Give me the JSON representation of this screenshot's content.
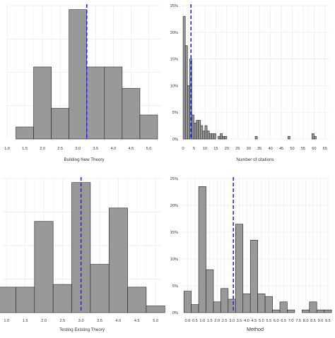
{
  "colors": {
    "bar_fill": "#999999",
    "bar_stroke": "#222222",
    "grid": "#ebebeb",
    "mean_line": "#2b2bd6"
  },
  "chart_data": [
    {
      "type": "bar",
      "id": "building",
      "xlabel": "Building New Theory",
      "ylabel": "",
      "x_ticks": [
        1.0,
        1.5,
        2.0,
        2.5,
        3.0,
        3.5,
        4.0,
        4.5,
        5.0
      ],
      "x_tick_labels": [
        "1.0",
        "1.5",
        "2.0",
        "2.5",
        "3.0",
        "3.5",
        "4.0",
        "4.5",
        "5.0"
      ],
      "xlim": [
        1.0,
        5.35
      ],
      "ylim": [
        0,
        1.0
      ],
      "y_ticks": [],
      "y_tick_labels": [],
      "grid": true,
      "mean": 3.25,
      "bars": [
        {
          "x0": 1.25,
          "x1": 1.75,
          "v": 0.09
        },
        {
          "x0": 1.75,
          "x1": 2.25,
          "v": 0.54
        },
        {
          "x0": 2.25,
          "x1": 2.75,
          "v": 0.23
        },
        {
          "x0": 2.75,
          "x1": 3.25,
          "v": 0.97
        },
        {
          "x0": 3.25,
          "x1": 3.75,
          "v": 0.54
        },
        {
          "x0": 3.75,
          "x1": 4.25,
          "v": 0.54
        },
        {
          "x0": 4.25,
          "x1": 4.75,
          "v": 0.38
        },
        {
          "x0": 4.75,
          "x1": 5.25,
          "v": 0.18
        }
      ]
    },
    {
      "type": "bar",
      "id": "citations",
      "xlabel": "Number of citations",
      "ylabel": "",
      "x_ticks": [
        0,
        5,
        10,
        15,
        20,
        25,
        30,
        35,
        40,
        45,
        50,
        55,
        60,
        65
      ],
      "x_tick_labels": [
        "0",
        "5",
        "10",
        "15",
        "20",
        "25",
        "30",
        "35",
        "40",
        "45",
        "50",
        "55",
        "60",
        "65"
      ],
      "xlim": [
        -1,
        67
      ],
      "ylim": [
        0,
        0.25
      ],
      "y_ticks": [
        0,
        0.05,
        0.1,
        0.15,
        0.2,
        0.25
      ],
      "y_tick_labels": [
        "0%",
        "5%",
        "10%",
        "15%",
        "20%",
        "25%"
      ],
      "grid": true,
      "mean": 3.6,
      "bars": [
        {
          "x0": 0,
          "x1": 1,
          "v": 0.23
        },
        {
          "x0": 1,
          "x1": 2,
          "v": 0.175
        },
        {
          "x0": 2,
          "x1": 3,
          "v": 0.1
        },
        {
          "x0": 3,
          "x1": 4,
          "v": 0.15
        },
        {
          "x0": 4,
          "x1": 5,
          "v": 0.045
        },
        {
          "x0": 5,
          "x1": 6,
          "v": 0.03
        },
        {
          "x0": 6,
          "x1": 7,
          "v": 0.035
        },
        {
          "x0": 7,
          "x1": 8,
          "v": 0.035
        },
        {
          "x0": 8,
          "x1": 9,
          "v": 0.025
        },
        {
          "x0": 9,
          "x1": 10,
          "v": 0.015
        },
        {
          "x0": 10,
          "x1": 11,
          "v": 0.025
        },
        {
          "x0": 11,
          "x1": 12,
          "v": 0.015
        },
        {
          "x0": 12,
          "x1": 13,
          "v": 0.01
        },
        {
          "x0": 13,
          "x1": 14,
          "v": 0.01
        },
        {
          "x0": 14,
          "x1": 15,
          "v": 0.01
        },
        {
          "x0": 16,
          "x1": 17,
          "v": 0.005
        },
        {
          "x0": 17,
          "x1": 18,
          "v": 0.01
        },
        {
          "x0": 18,
          "x1": 19,
          "v": 0.005
        },
        {
          "x0": 19,
          "x1": 20,
          "v": 0.005
        },
        {
          "x0": 33,
          "x1": 34,
          "v": 0.005
        },
        {
          "x0": 48,
          "x1": 49,
          "v": 0.005
        },
        {
          "x0": 59,
          "x1": 60,
          "v": 0.01
        },
        {
          "x0": 60,
          "x1": 61,
          "v": 0.005
        }
      ]
    },
    {
      "type": "bar",
      "id": "testing",
      "xlabel": "Testing Existing Theory",
      "ylabel": "",
      "x_ticks": [
        1.0,
        1.5,
        2.0,
        2.5,
        3.0,
        3.5,
        4.0,
        4.5,
        5.0
      ],
      "x_tick_labels": [
        "1.0",
        "1.5",
        "2.0",
        "2.5",
        "3.0",
        "3.5",
        "4.0",
        "4.5",
        "5.0"
      ],
      "xlim": [
        0.9,
        5.15
      ],
      "ylim": [
        0,
        1.0
      ],
      "y_ticks": [],
      "y_tick_labels": [],
      "grid": true,
      "mean": 3.0,
      "bars": [
        {
          "x0": 0.75,
          "x1": 1.25,
          "v": 0.19
        },
        {
          "x0": 1.25,
          "x1": 1.75,
          "v": 0.19
        },
        {
          "x0": 1.75,
          "x1": 2.25,
          "v": 0.68
        },
        {
          "x0": 2.25,
          "x1": 2.75,
          "v": 0.21
        },
        {
          "x0": 2.75,
          "x1": 3.25,
          "v": 0.97
        },
        {
          "x0": 3.25,
          "x1": 3.75,
          "v": 0.36
        },
        {
          "x0": 3.75,
          "x1": 4.25,
          "v": 0.78
        },
        {
          "x0": 4.25,
          "x1": 4.75,
          "v": 0.19
        },
        {
          "x0": 4.75,
          "x1": 5.25,
          "v": 0.05
        }
      ]
    },
    {
      "type": "bar",
      "id": "method",
      "xlabel": "Method",
      "ylabel": "",
      "x_ticks": [
        0.0,
        0.5,
        1.0,
        1.5,
        2.0,
        2.5,
        3.0,
        3.5,
        4.0,
        4.5,
        5.0,
        5.5,
        6.0,
        6.5,
        7.0,
        7.5,
        8.0,
        8.5,
        9.0,
        9.5
      ],
      "x_tick_labels": [
        "0.0",
        "0.5",
        "1.0",
        "1.5",
        "2.0",
        "2.5",
        "3.0",
        "3.5",
        "4.0",
        "4.5",
        "5.0",
        "5.5",
        "6.0",
        "6.5",
        "7.0",
        "7.5",
        "8.0",
        "8.5",
        "9.0",
        "9.5"
      ],
      "xlim": [
        -0.45,
        9.6
      ],
      "ylim": [
        0,
        0.25
      ],
      "y_ticks": [
        0,
        0.05,
        0.1,
        0.15,
        0.2,
        0.25
      ],
      "y_tick_labels": [
        "0%",
        "5%",
        "10%",
        "15%",
        "20%",
        "25%"
      ],
      "grid": true,
      "mean": 3.1,
      "bars": [
        {
          "x0": -0.25,
          "x1": 0.25,
          "v": 0.04
        },
        {
          "x0": 0.25,
          "x1": 0.75,
          "v": 0.015
        },
        {
          "x0": 0.75,
          "x1": 1.25,
          "v": 0.235
        },
        {
          "x0": 1.25,
          "x1": 1.75,
          "v": 0.08
        },
        {
          "x0": 1.75,
          "x1": 2.25,
          "v": 0.02
        },
        {
          "x0": 2.25,
          "x1": 2.75,
          "v": 0.045
        },
        {
          "x0": 2.75,
          "x1": 3.25,
          "v": 0.025
        },
        {
          "x0": 3.25,
          "x1": 3.75,
          "v": 0.165
        },
        {
          "x0": 3.75,
          "x1": 4.25,
          "v": 0.035
        },
        {
          "x0": 4.25,
          "x1": 4.75,
          "v": 0.135
        },
        {
          "x0": 4.75,
          "x1": 5.25,
          "v": 0.035
        },
        {
          "x0": 5.25,
          "x1": 5.75,
          "v": 0.03
        },
        {
          "x0": 5.75,
          "x1": 6.25,
          "v": 0.005
        },
        {
          "x0": 6.25,
          "x1": 6.75,
          "v": 0.02
        },
        {
          "x0": 6.75,
          "x1": 7.25,
          "v": 0.005
        },
        {
          "x0": 7.75,
          "x1": 8.25,
          "v": 0.005
        },
        {
          "x0": 8.25,
          "x1": 8.75,
          "v": 0.02
        },
        {
          "x0": 8.75,
          "x1": 9.25,
          "v": 0.005
        },
        {
          "x0": 9.25,
          "x1": 9.75,
          "v": 0.005
        }
      ]
    }
  ]
}
